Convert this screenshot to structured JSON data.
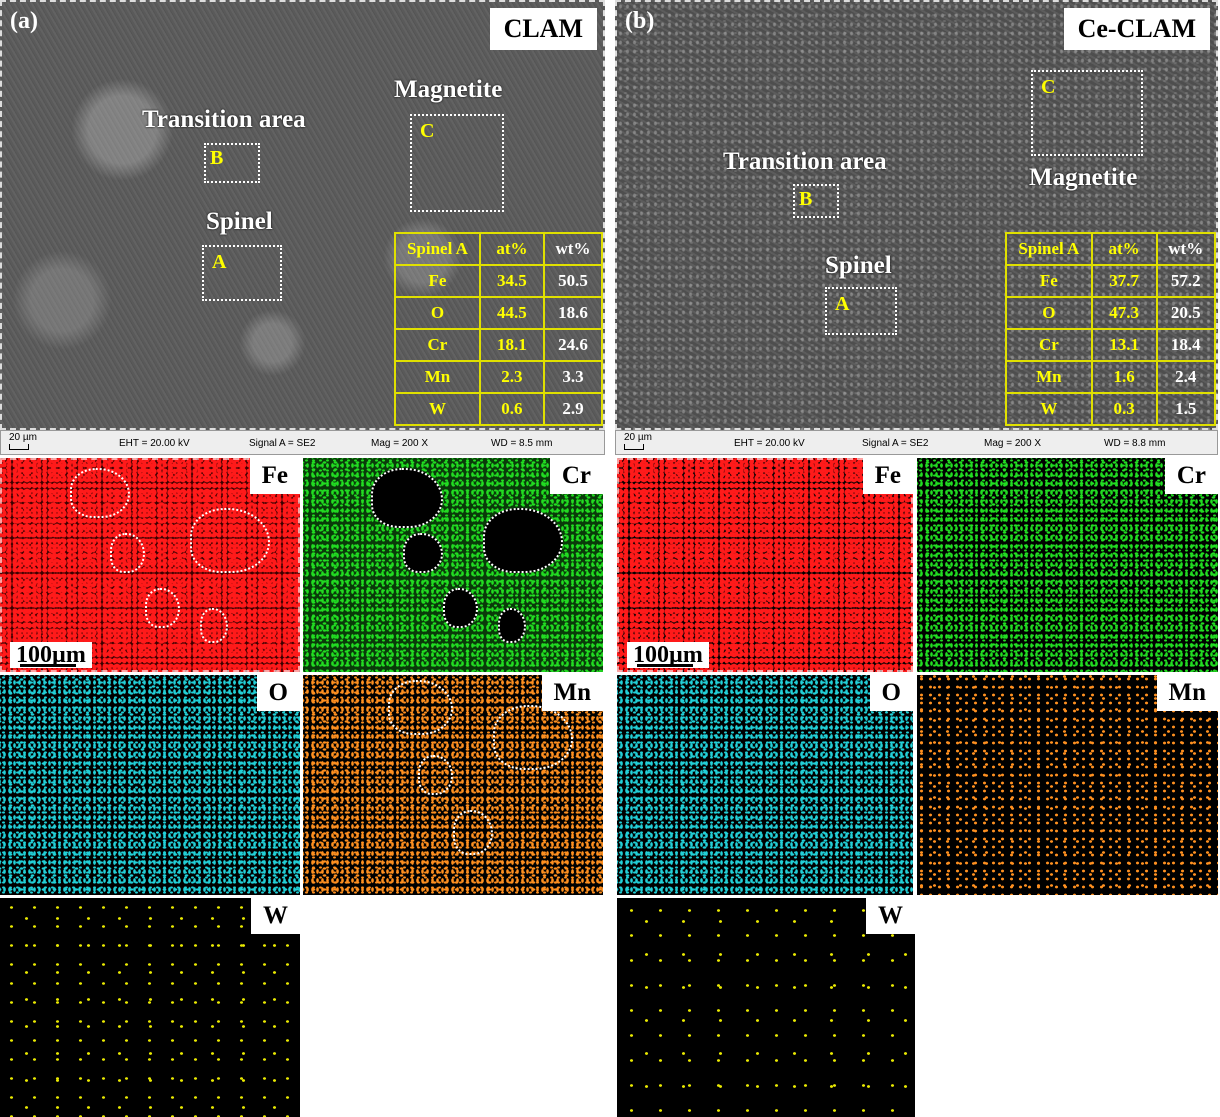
{
  "panels": [
    {
      "letter": "(a)",
      "title": "CLAM",
      "annotations": {
        "magnetite": "Magnetite",
        "transition": "Transition area",
        "spinel": "Spinel"
      },
      "regions": [
        "A",
        "B",
        "C"
      ],
      "table": {
        "header": [
          "Spinel A",
          "at%",
          "wt%"
        ],
        "rows": [
          [
            "Fe",
            "34.5",
            "50.5"
          ],
          [
            "O",
            "44.5",
            "18.6"
          ],
          [
            "Cr",
            "18.1",
            "24.6"
          ],
          [
            "Mn",
            "2.3",
            "3.3"
          ],
          [
            "W",
            "0.6",
            "2.9"
          ]
        ]
      },
      "info": {
        "scale": "20 µm",
        "eht": "EHT = 20.00 kV",
        "signal": "Signal A = SE2",
        "mag": "Mag =   200 X",
        "wd": "WD =  8.5 mm"
      },
      "maps": {
        "scale": "100µm",
        "labels": [
          "Fe",
          "Cr",
          "O",
          "Mn",
          "W"
        ]
      }
    },
    {
      "letter": "(b)",
      "title": "Ce-CLAM",
      "annotations": {
        "magnetite": "Magnetite",
        "transition": "Transition area",
        "spinel": "Spinel"
      },
      "regions": [
        "A",
        "B",
        "C"
      ],
      "table": {
        "header": [
          "Spinel A",
          "at%",
          "wt%"
        ],
        "rows": [
          [
            "Fe",
            "37.7",
            "57.2"
          ],
          [
            "O",
            "47.3",
            "20.5"
          ],
          [
            "Cr",
            "13.1",
            "18.4"
          ],
          [
            "Mn",
            "1.6",
            "2.4"
          ],
          [
            "W",
            "0.3",
            "1.5"
          ]
        ]
      },
      "info": {
        "scale": "20 µm",
        "eht": "EHT = 20.00 kV",
        "signal": "Signal A = SE2",
        "mag": "Mag =   200 X",
        "wd": "WD =  8.8 mm"
      },
      "maps": {
        "scale": "100µm",
        "labels": [
          "Fe",
          "Cr",
          "O",
          "Mn",
          "W"
        ]
      }
    }
  ],
  "colors": {
    "Fe": "#ff1a1a",
    "Cr": "#22dd22",
    "O": "#22d0d8",
    "Mn": "#ff9020",
    "W": "#e8e800",
    "table_text": "#ffff00"
  }
}
